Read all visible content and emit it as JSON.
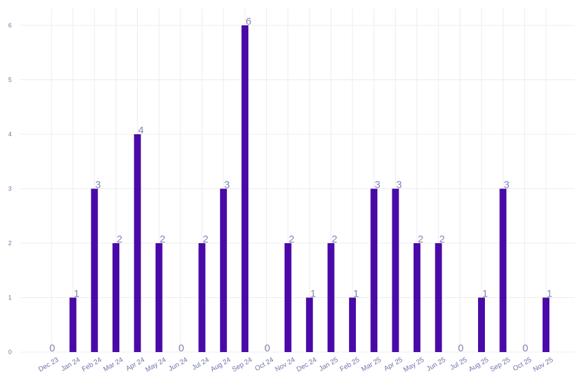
{
  "chart_data": {
    "type": "bar",
    "categories": [
      "Dec 23",
      "Jan 24",
      "Feb 24",
      "Mar 24",
      "Apr 24",
      "May 24",
      "Jun 24",
      "Jul 24",
      "Aug 24",
      "Sep 24",
      "Oct 24",
      "Nov 24",
      "Dec 24",
      "Jan 25",
      "Feb 25",
      "Mar 25",
      "Apr 25",
      "May 25",
      "Jun 25",
      "Jul 25",
      "Aug 25",
      "Sep 25",
      "Oct 25",
      "Nov 25"
    ],
    "values": [
      0,
      1,
      3,
      2,
      4,
      2,
      0,
      2,
      3,
      6,
      0,
      2,
      1,
      2,
      1,
      3,
      3,
      2,
      2,
      0,
      1,
      3,
      0,
      1
    ],
    "data_labels": [
      "0",
      "1",
      "3",
      "2",
      "4",
      "2",
      "0",
      "2",
      "3",
      "6",
      "0",
      "2",
      "1",
      "2",
      "1",
      "3",
      "3",
      "2",
      "2",
      "0",
      "1",
      "3",
      "0",
      "1"
    ],
    "yticks": [
      0,
      1,
      2,
      3,
      4,
      5,
      6
    ],
    "ylim": [
      0,
      6.3
    ],
    "grid": true,
    "bar_color": "#4a0aa8",
    "label_color": "#7f86b8",
    "tick_color": "#6e74a8",
    "grid_color": "#ececec"
  }
}
